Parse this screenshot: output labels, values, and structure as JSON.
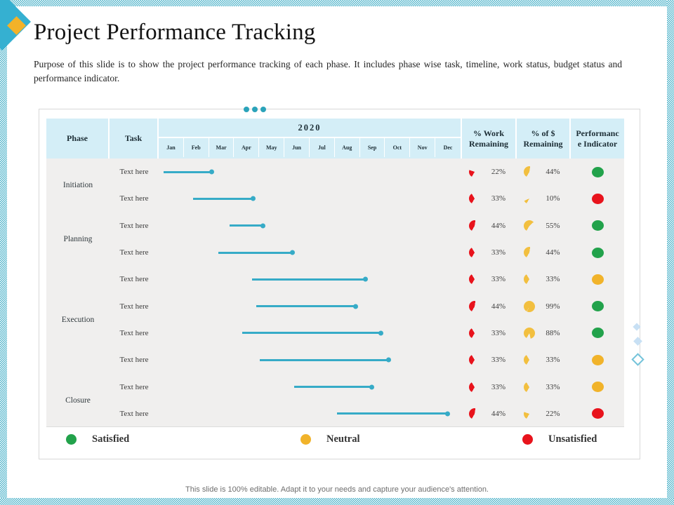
{
  "slide": {
    "title": "Project Performance Tracking",
    "subtitle": "Purpose of this slide is to show the project performance tracking of each phase. It includes phase wise task, timeline, work status, budget status and performance indicator.",
    "footer": "This slide is 100% editable. Adapt it to your needs and capture your audience's attention."
  },
  "table": {
    "header": {
      "phase": "Phase",
      "task": "Task",
      "year": "2020",
      "work": "% Work Remaining",
      "budget": "% of $ Remaining",
      "indicator": "Performance Indicator"
    },
    "months": [
      "Jan",
      "Feb",
      "Mar",
      "Apr",
      "May",
      "Jun",
      "Jul",
      "Aug",
      "Sep",
      "Oct",
      "Nov",
      "Dec"
    ],
    "phases": [
      {
        "name": "Initiation",
        "span": 2
      },
      {
        "name": "Planning",
        "span": 2
      },
      {
        "name": "Execution",
        "span": 4
      },
      {
        "name": "Closure",
        "span": 2
      }
    ],
    "rows": [
      {
        "task": "Text here",
        "bar_start_month": 0.2,
        "bar_end_month": 2.1,
        "work": "22%",
        "work_pct": 22,
        "budget": "44%",
        "budget_pct": 44,
        "status": "satisfied"
      },
      {
        "task": "Text here",
        "bar_start_month": 1.35,
        "bar_end_month": 3.75,
        "work": "33%",
        "work_pct": 33,
        "budget": "10%",
        "budget_pct": 10,
        "status": "unsatisfied"
      },
      {
        "task": "Text here",
        "bar_start_month": 2.8,
        "bar_end_month": 4.15,
        "work": "44%",
        "work_pct": 44,
        "budget": "55%",
        "budget_pct": 55,
        "status": "satisfied"
      },
      {
        "task": "Text here",
        "bar_start_month": 2.35,
        "bar_end_month": 5.3,
        "work": "33%",
        "work_pct": 33,
        "budget": "44%",
        "budget_pct": 44,
        "status": "satisfied"
      },
      {
        "task": "Text here",
        "bar_start_month": 3.7,
        "bar_end_month": 8.2,
        "work": "33%",
        "work_pct": 33,
        "budget": "33%",
        "budget_pct": 33,
        "status": "neutral"
      },
      {
        "task": "Text here",
        "bar_start_month": 3.85,
        "bar_end_month": 7.8,
        "work": "44%",
        "work_pct": 44,
        "budget": "99%",
        "budget_pct": 99,
        "status": "satisfied"
      },
      {
        "task": "Text here",
        "bar_start_month": 3.3,
        "bar_end_month": 8.8,
        "work": "33%",
        "work_pct": 33,
        "budget": "88%",
        "budget_pct": 88,
        "status": "satisfied"
      },
      {
        "task": "Text here",
        "bar_start_month": 4.0,
        "bar_end_month": 9.1,
        "work": "33%",
        "work_pct": 33,
        "budget": "33%",
        "budget_pct": 33,
        "status": "neutral"
      },
      {
        "task": "Text here",
        "bar_start_month": 5.35,
        "bar_end_month": 8.45,
        "work": "33%",
        "work_pct": 33,
        "budget": "33%",
        "budget_pct": 33,
        "status": "neutral"
      },
      {
        "task": "Text here",
        "bar_start_month": 7.05,
        "bar_end_month": 11.45,
        "work": "44%",
        "work_pct": 44,
        "budget": "22%",
        "budget_pct": 22,
        "status": "unsatisfied"
      }
    ]
  },
  "legend": [
    {
      "label": "Satisfied",
      "status": "satisfied"
    },
    {
      "label": "Neutral",
      "status": "neutral"
    },
    {
      "label": "Unsatisfied",
      "status": "unsatisfied"
    }
  ],
  "colors": {
    "accent_cyan": "#35b0d1",
    "accent_yellow": "#f3b229",
    "bar": "#36abc7",
    "work_pie": "#e8131c",
    "budget_pie": "#f2bf3f",
    "status": {
      "satisfied": "#22a24b",
      "neutral": "#f1b32a",
      "unsatisfied": "#e8131c"
    },
    "header_bg": "#d4eef7",
    "body_bg": "#f0efee"
  }
}
